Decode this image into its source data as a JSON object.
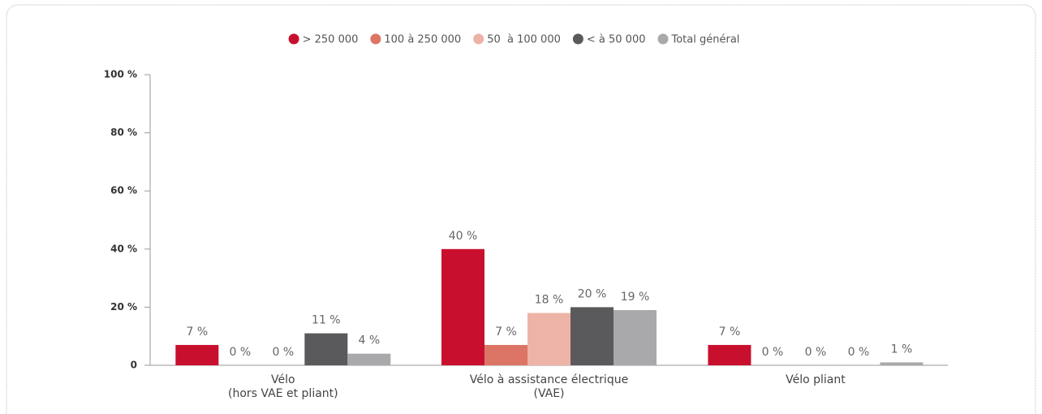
{
  "chart_data": {
    "type": "bar",
    "categories": [
      [
        "Vélo",
        "(hors VAE et pliant)"
      ],
      [
        "Vélo à assistance électrique",
        "(VAE)"
      ],
      [
        "Vélo pliant"
      ]
    ],
    "series": [
      {
        "name": "> 250 000",
        "color": "#c8102e",
        "values": [
          7,
          40,
          7
        ],
        "value_labels": [
          "7 %",
          "40 %",
          "7 %"
        ]
      },
      {
        "name": "100 à 250 000",
        "color": "#dd7566",
        "values": [
          0,
          7,
          0
        ],
        "value_labels": [
          "0 %",
          "7 %",
          "0 %"
        ]
      },
      {
        "name": "50  à 100 000",
        "color": "#edb3a6",
        "values": [
          0,
          18,
          0
        ],
        "value_labels": [
          "0 %",
          "18 %",
          "0 %"
        ]
      },
      {
        "name": "< à 50 000",
        "color": "#5a5a5c",
        "values": [
          11,
          20,
          0
        ],
        "value_labels": [
          "11 %",
          "20 %",
          "0 %"
        ]
      },
      {
        "name": "Total général",
        "color": "#a9a9ab",
        "values": [
          4,
          19,
          1
        ],
        "value_labels": [
          "4 %",
          "19 %",
          "1 %"
        ]
      }
    ],
    "ylim": [
      0,
      100
    ],
    "yticks": [
      0,
      {
        "value": 20,
        "label": "20 %"
      },
      {
        "value": 40,
        "label": "40 %"
      },
      {
        "value": 60,
        "label": "60 %"
      },
      {
        "value": 80,
        "label": "80 %"
      },
      {
        "value": 100,
        "label": "100 %"
      }
    ],
    "legend": "top"
  }
}
